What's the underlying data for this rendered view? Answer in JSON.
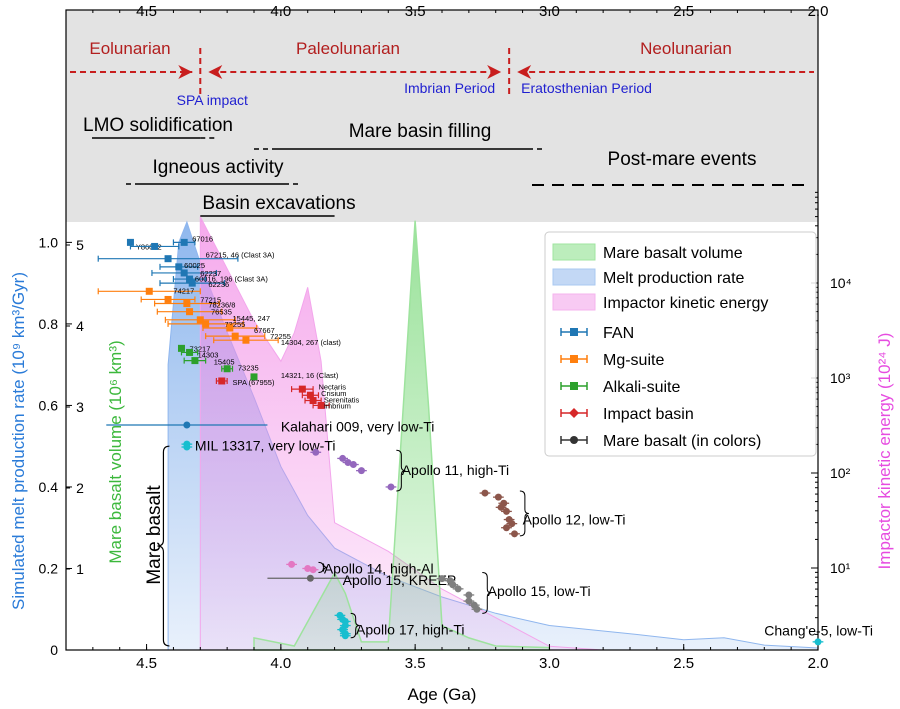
{
  "chart_data": {
    "type": "scatter",
    "xlabel": "Age (Ga)",
    "xlim": [
      4.8,
      2.0
    ],
    "x_ticks": [
      "4.5",
      "4.0",
      "3.5",
      "3.0",
      "2.5",
      "2.0"
    ],
    "x_tick_values": [
      4.5,
      4.0,
      3.5,
      3.0,
      2.5,
      2.0
    ],
    "ylabel_melt": "Simulated melt production rate (10⁹ km³/Gyr)",
    "ylim_melt": [
      0,
      1.05
    ],
    "melt_ticks": [
      "0",
      "0.2",
      "0.4",
      "0.6",
      "0.8",
      "1.0"
    ],
    "melt_tick_values": [
      0,
      0.2,
      0.4,
      0.6,
      0.8,
      1.0
    ],
    "ylabel_mare": "Mare basalt volume (10⁶ km³)",
    "mare_ticks": [
      "1",
      "2",
      "3",
      "4",
      "5"
    ],
    "mare_tick_values": [
      1,
      2,
      3,
      4,
      5
    ],
    "ylabel_energy": "Impactor kinetic energy (10²⁴ J)",
    "energy_scale": "log",
    "energy_ticks": [
      "10¹",
      "10²",
      "10³",
      "10⁴"
    ],
    "energy_tick_values": [
      10,
      100,
      1000,
      10000
    ],
    "periods": [
      {
        "label": "Eolunarian",
        "x": 4.55
      },
      {
        "label": "Paleolunarian",
        "x": 3.7
      },
      {
        "label": "Neolunarian",
        "x": 2.55
      }
    ],
    "boundaries": [
      {
        "x": 4.3,
        "label": "SPA impact"
      },
      {
        "x": 3.15,
        "label": "Imbrian Period",
        "label2": "Eratosthenian Period"
      }
    ],
    "events": [
      {
        "label": "LMO solidification",
        "x0": 4.65,
        "x1": 4.3,
        "dash_to": 4.32
      },
      {
        "label": "Mare basin filling",
        "x0": 4.05,
        "x1": 3.15,
        "dash_from": 4.1,
        "dash_to": 3.05
      },
      {
        "label": "Igneous activity",
        "x0": 4.6,
        "x1": 4.0,
        "dash_from": 4.65,
        "dash_to": 3.95
      },
      {
        "label": "Basin excavations",
        "x0": 4.3,
        "x1": 3.8
      },
      {
        "label": "Post-mare events",
        "x0": 3.1,
        "x1": 2.0
      }
    ],
    "legend": {
      "placement": "top-right",
      "areas": [
        {
          "label": "Mare basalt volume",
          "color": "#9fe59f"
        },
        {
          "label": "Melt production rate",
          "color": "#a9c8f1"
        },
        {
          "label": "Impactor kinetic energy",
          "color": "#f5b3ee"
        }
      ],
      "markers": [
        {
          "label": "FAN",
          "color": "#1f77b4"
        },
        {
          "label": "Mg-suite",
          "color": "#ff7f0e"
        },
        {
          "label": "Alkali-suite",
          "color": "#2ca02c"
        },
        {
          "label": "Impact basin",
          "color": "#d62728"
        },
        {
          "label": "Mare basalt (in colors)",
          "color": "#333333"
        }
      ]
    },
    "melt_production_rate": [
      [
        4.42,
        0
      ],
      [
        4.42,
        0.7
      ],
      [
        4.38,
        1.0
      ],
      [
        4.35,
        1.05
      ],
      [
        4.3,
        0.95
      ],
      [
        4.2,
        0.78
      ],
      [
        4.1,
        0.62
      ],
      [
        4.0,
        0.45
      ],
      [
        3.9,
        0.33
      ],
      [
        3.8,
        0.25
      ],
      [
        3.6,
        0.18
      ],
      [
        3.4,
        0.13
      ],
      [
        3.2,
        0.09
      ],
      [
        3.0,
        0.06
      ],
      [
        2.7,
        0.04
      ],
      [
        2.5,
        0.025
      ],
      [
        2.35,
        0.03
      ],
      [
        2.2,
        0.012
      ],
      [
        2.0,
        0.005
      ],
      [
        2.0,
        0
      ]
    ],
    "mare_basalt_volume": [
      [
        4.1,
        0
      ],
      [
        4.1,
        0.15
      ],
      [
        3.95,
        0.05
      ],
      [
        3.8,
        0.95
      ],
      [
        3.76,
        0.7
      ],
      [
        3.7,
        0.1
      ],
      [
        3.6,
        0.1
      ],
      [
        3.5,
        5.3
      ],
      [
        3.45,
        3.0
      ],
      [
        3.4,
        0.3
      ],
      [
        3.3,
        0.15
      ],
      [
        3.2,
        0.05
      ],
      [
        3.0,
        0.03
      ],
      [
        3.0,
        0
      ]
    ],
    "impactor_energy": [
      [
        4.3,
        1
      ],
      [
        4.3,
        50000
      ],
      [
        4.1,
        4000
      ],
      [
        4.0,
        1500
      ],
      [
        3.95,
        3000
      ],
      [
        3.9,
        9000
      ],
      [
        3.85,
        1500
      ],
      [
        3.8,
        30
      ],
      [
        3.6,
        15
      ],
      [
        3.4,
        6
      ],
      [
        3.2,
        3
      ],
      [
        3.0,
        1.5
      ],
      [
        2.8,
        1
      ]
    ],
    "samples": [
      {
        "group": "FAN",
        "color": "#1f77b4",
        "points": [
          {
            "x": 4.56,
            "y": 1.0,
            "label": "Y86032",
            "lx": 4.54,
            "ly": 0.99
          },
          {
            "x": 4.36,
            "y": 1.0,
            "xerr": 0.04,
            "label": "67016",
            "lx": 4.33,
            "ly": 1.01
          },
          {
            "x": 4.47,
            "y": 0.99,
            "xerr": 0.09,
            "label": ""
          },
          {
            "x": 4.42,
            "y": 0.96,
            "xerr": 0.26,
            "label": "67215, 46 (Clast 3A)",
            "lx": 4.28,
            "ly": 0.97
          },
          {
            "x": 4.38,
            "y": 0.94,
            "xerr": 0.07,
            "label": "60025",
            "lx": 4.36,
            "ly": 0.945
          },
          {
            "x": 4.36,
            "y": 0.925,
            "xerr": 0.12,
            "label": "62237",
            "lx": 4.3,
            "ly": 0.925
          },
          {
            "x": 4.34,
            "y": 0.91,
            "xerr": 0.06,
            "label": "60016, 196 (Clast 3A)",
            "lx": 4.32,
            "ly": 0.912
          },
          {
            "x": 4.33,
            "y": 0.9,
            "xerr": 0.12,
            "label": "62236",
            "lx": 4.27,
            "ly": 0.898
          }
        ]
      },
      {
        "group": "Mg-suite",
        "color": "#ff7f0e",
        "points": [
          {
            "x": 4.49,
            "y": 0.88,
            "xerr": 0.19,
            "label": "74217",
            "lx": 4.4,
            "ly": 0.882
          },
          {
            "x": 4.42,
            "y": 0.86,
            "xerr": 0.1,
            "label": "77215",
            "lx": 4.3,
            "ly": 0.86
          },
          {
            "x": 4.35,
            "y": 0.85,
            "xerr": 0.12,
            "label": "78236/8",
            "lx": 4.27,
            "ly": 0.847
          },
          {
            "x": 4.34,
            "y": 0.83,
            "xerr": 0.12,
            "label": "76535",
            "lx": 4.26,
            "ly": 0.83
          },
          {
            "x": 4.3,
            "y": 0.81,
            "xerr": 0.13,
            "label": "15445, 247",
            "lx": 4.18,
            "ly": 0.814
          },
          {
            "x": 4.28,
            "y": 0.8,
            "xerr": 0.14,
            "label": "73255",
            "lx": 4.21,
            "ly": 0.8
          },
          {
            "x": 4.19,
            "y": 0.79,
            "xerr": 0.1,
            "label": "67667",
            "lx": 4.1,
            "ly": 0.785
          },
          {
            "x": 4.17,
            "y": 0.77,
            "xerr": 0.11,
            "label": "72255",
            "lx": 4.04,
            "ly": 0.77
          },
          {
            "x": 4.13,
            "y": 0.76,
            "xerr": 0.12,
            "label": "14304, 267 (clast)",
            "lx": 4.0,
            "ly": 0.755
          }
        ]
      },
      {
        "group": "Alkali-suite",
        "color": "#2ca02c",
        "points": [
          {
            "x": 4.37,
            "y": 0.74,
            "label": "73217",
            "lx": 4.34,
            "ly": 0.74
          },
          {
            "x": 4.34,
            "y": 0.73,
            "xerr": 0.03,
            "label": "14303",
            "lx": 4.31,
            "ly": 0.725
          },
          {
            "x": 4.32,
            "y": 0.71,
            "xerr": 0.04,
            "label": "15405",
            "lx": 4.25,
            "ly": 0.708
          },
          {
            "x": 4.2,
            "y": 0.69,
            "xerr": 0.02,
            "label": "73235",
            "lx": 4.16,
            "ly": 0.693
          },
          {
            "x": 4.1,
            "y": 0.67,
            "label": "14321, 16 (Clast)",
            "lx": 4.0,
            "ly": 0.675
          }
        ]
      },
      {
        "group": "Impact basin",
        "color": "#d62728",
        "points": [
          {
            "x": 4.22,
            "y": 0.66,
            "xerr": 0.02,
            "label": "SPA (67955)",
            "lx": 4.18,
            "ly": 0.658
          },
          {
            "x": 3.92,
            "y": 0.64,
            "xerr": 0.04,
            "label": "Nectaris",
            "lx": 3.86,
            "ly": 0.646
          },
          {
            "x": 3.89,
            "y": 0.625,
            "xerr": 0.03,
            "label": "Crisium",
            "lx": 3.85,
            "ly": 0.63
          },
          {
            "x": 3.88,
            "y": 0.612,
            "xerr": 0.03,
            "label": "Serenitatis",
            "lx": 3.84,
            "ly": 0.615
          },
          {
            "x": 3.85,
            "y": 0.6,
            "xerr": 0.03,
            "label": "Imbrium",
            "lx": 3.84,
            "ly": 0.6
          }
        ]
      }
    ],
    "mare_groups": [
      {
        "label": "Kalahari 009, very low-Ti",
        "color": "#1f77b4",
        "points": [
          [
            4.35,
            0.552
          ]
        ],
        "xerr": 0.3,
        "lx": 4.0,
        "ly": 0.548
      },
      {
        "label": "MIL 13317, very low-Ti",
        "color": "#17becf",
        "points": [
          [
            4.35,
            0.505
          ],
          [
            4.35,
            0.498
          ]
        ],
        "lx": 4.32,
        "ly": 0.502
      },
      {
        "label": "Apollo 11, high-Ti",
        "color": "#9467bd",
        "points": [
          [
            3.87,
            0.485
          ],
          [
            3.77,
            0.47
          ],
          [
            3.73,
            0.455
          ],
          [
            3.7,
            0.44
          ],
          [
            3.59,
            0.4
          ],
          [
            3.75,
            0.46
          ]
        ],
        "lx": 3.55,
        "ly": 0.442,
        "brace": [
          3.57,
          0.39,
          0.49
        ]
      },
      {
        "label": "Apollo 12, low-Ti",
        "color": "#8c564b",
        "points": [
          [
            3.24,
            0.385
          ],
          [
            3.19,
            0.375
          ],
          [
            3.17,
            0.36
          ],
          [
            3.18,
            0.35
          ],
          [
            3.16,
            0.34
          ],
          [
            3.15,
            0.32
          ],
          [
            3.14,
            0.31
          ],
          [
            3.16,
            0.3
          ],
          [
            3.13,
            0.285
          ]
        ],
        "lx": 3.1,
        "ly": 0.32,
        "brace": [
          3.11,
          0.28,
          0.39
        ]
      },
      {
        "label": "Apollo 14, high-Al",
        "color": "#e377c2",
        "points": [
          [
            3.96,
            0.21
          ],
          [
            3.9,
            0.2
          ],
          [
            3.88,
            0.197
          ]
        ],
        "lx": 3.84,
        "ly": 0.2,
        "brace": [
          3.86,
          0.19,
          0.215
        ]
      },
      {
        "label": "Apollo 15, KREEP",
        "color": "#666666",
        "points": [
          [
            3.89,
            0.176
          ]
        ],
        "xerr": 0.16,
        "lx": 3.77,
        "ly": 0.172
      },
      {
        "label": "Apollo 15, low-Ti",
        "color": "#7f7f7f",
        "points": [
          [
            3.4,
            0.175
          ],
          [
            3.37,
            0.17
          ],
          [
            3.36,
            0.16
          ],
          [
            3.34,
            0.15
          ],
          [
            3.3,
            0.12
          ],
          [
            3.28,
            0.11
          ],
          [
            3.27,
            0.1
          ],
          [
            3.3,
            0.135
          ]
        ],
        "lx": 3.23,
        "ly": 0.145,
        "brace": [
          3.25,
          0.09,
          0.19
        ]
      },
      {
        "label": "Apollo 17, high-Ti",
        "color": "#17becf",
        "points": [
          [
            3.78,
            0.085
          ],
          [
            3.77,
            0.075
          ],
          [
            3.76,
            0.07
          ],
          [
            3.76,
            0.06
          ],
          [
            3.77,
            0.05
          ],
          [
            3.76,
            0.04
          ],
          [
            3.76,
            0.035
          ]
        ],
        "lx": 3.72,
        "ly": 0.05,
        "brace": [
          3.74,
          0.03,
          0.09
        ]
      },
      {
        "label": "Chang'e-5, low-Ti",
        "color": "#17becf",
        "points": [
          [
            2.0,
            0.02
          ]
        ],
        "lx": 2.2,
        "ly": 0.048
      }
    ],
    "mare_basalt_label": "Mare basalt",
    "mare_basalt_brace": [
      4.4,
      0.01,
      0.5
    ]
  }
}
